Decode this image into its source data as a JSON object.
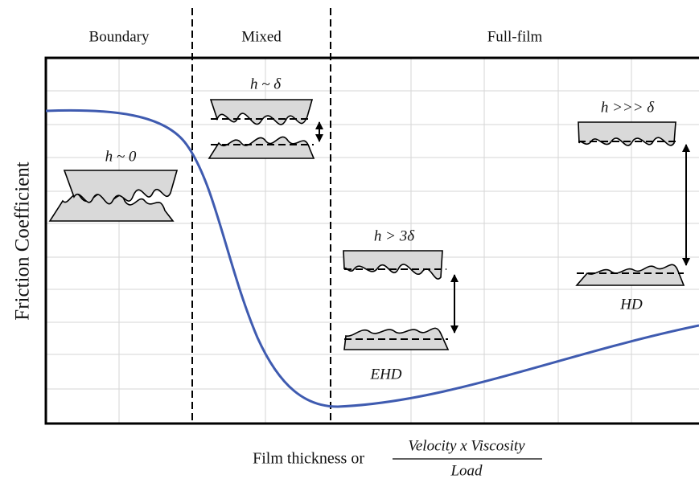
{
  "regions": [
    "Boundary",
    "Mixed",
    "Full-film"
  ],
  "y_axis_label": "Friction Coefficient",
  "x_axis_label": {
    "prefix": "Film thickness or",
    "numerator": "Velocity x Viscosity",
    "denominator": "Load"
  },
  "annotations": [
    "h ~ 0",
    "h ~ δ",
    "h > 3δ",
    "h >>> δ",
    "EHD",
    "HD"
  ]
}
